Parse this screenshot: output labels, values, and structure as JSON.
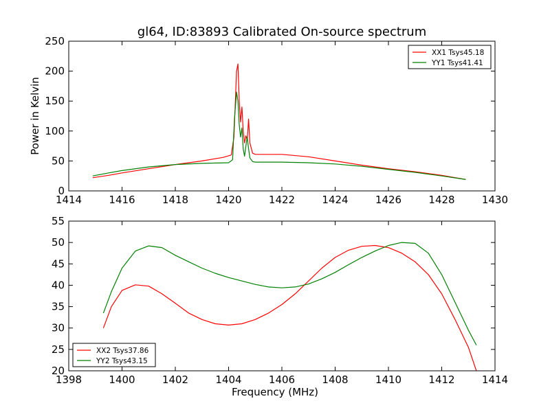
{
  "figure": {
    "title": "gl64, ID:83893 Calibrated On-source spectrum"
  },
  "colors": {
    "XX": "#ff0000",
    "YY": "#008000"
  },
  "chart_data": [
    {
      "type": "line",
      "title": "gl64, ID:83893 Calibrated On-source spectrum",
      "xlabel": "",
      "ylabel": "Power in Kelvin",
      "xlim": [
        1414,
        1430
      ],
      "ylim": [
        0,
        250
      ],
      "xticks": [
        1414,
        1416,
        1418,
        1420,
        1422,
        1424,
        1426,
        1428,
        1430
      ],
      "yticks": [
        0,
        50,
        100,
        150,
        200,
        250
      ],
      "legend_position": "top-right",
      "series": [
        {
          "name": "XX1 Tsys45.18",
          "color": "#ff0000",
          "points": [
            [
              1414.9,
              22
            ],
            [
              1415.5,
              26
            ],
            [
              1416.0,
              30
            ],
            [
              1417.0,
              37
            ],
            [
              1418.0,
              44
            ],
            [
              1419.0,
              50
            ],
            [
              1419.8,
              56
            ],
            [
              1420.1,
              60
            ],
            [
              1420.2,
              90
            ],
            [
              1420.3,
              200
            ],
            [
              1420.35,
              212
            ],
            [
              1420.4,
              150
            ],
            [
              1420.45,
              115
            ],
            [
              1420.5,
              140
            ],
            [
              1420.55,
              100
            ],
            [
              1420.6,
              80
            ],
            [
              1420.65,
              92
            ],
            [
              1420.7,
              85
            ],
            [
              1420.75,
              120
            ],
            [
              1420.8,
              80
            ],
            [
              1420.9,
              63
            ],
            [
              1421.0,
              61
            ],
            [
              1422.0,
              61
            ],
            [
              1423.0,
              57
            ],
            [
              1424.0,
              50
            ],
            [
              1425.0,
              43
            ],
            [
              1426.0,
              37
            ],
            [
              1427.0,
              32
            ],
            [
              1428.0,
              26
            ],
            [
              1428.9,
              19
            ]
          ]
        },
        {
          "name": "YY1 Tsys41.41",
          "color": "#008000",
          "points": [
            [
              1414.9,
              25
            ],
            [
              1415.5,
              30
            ],
            [
              1416.0,
              34
            ],
            [
              1417.0,
              40
            ],
            [
              1418.0,
              44
            ],
            [
              1419.0,
              46
            ],
            [
              1420.0,
              47
            ],
            [
              1420.15,
              52
            ],
            [
              1420.22,
              120
            ],
            [
              1420.3,
              165
            ],
            [
              1420.35,
              150
            ],
            [
              1420.4,
              110
            ],
            [
              1420.45,
              90
            ],
            [
              1420.5,
              105
            ],
            [
              1420.55,
              70
            ],
            [
              1420.6,
              58
            ],
            [
              1420.65,
              75
            ],
            [
              1420.7,
              90
            ],
            [
              1420.75,
              70
            ],
            [
              1420.8,
              55
            ],
            [
              1420.9,
              49
            ],
            [
              1421.0,
              48
            ],
            [
              1422.0,
              48
            ],
            [
              1423.0,
              47
            ],
            [
              1424.0,
              45
            ],
            [
              1425.0,
              41
            ],
            [
              1426.0,
              36
            ],
            [
              1427.0,
              31
            ],
            [
              1428.0,
              25
            ],
            [
              1428.9,
              19
            ]
          ]
        }
      ]
    },
    {
      "type": "line",
      "title": "",
      "xlabel": "Frequency (MHz)",
      "ylabel": "",
      "xlim": [
        1398,
        1414
      ],
      "ylim": [
        20,
        55
      ],
      "xticks": [
        1398,
        1400,
        1402,
        1404,
        1406,
        1408,
        1410,
        1412,
        1414
      ],
      "yticks": [
        20,
        25,
        30,
        35,
        40,
        45,
        50,
        55
      ],
      "legend_position": "bottom-left",
      "series": [
        {
          "name": "XX2 Tsys37.86",
          "color": "#ff0000",
          "points": [
            [
              1399.3,
              30
            ],
            [
              1399.6,
              35
            ],
            [
              1400.0,
              38.8
            ],
            [
              1400.5,
              40.1
            ],
            [
              1401.0,
              39.8
            ],
            [
              1401.5,
              38
            ],
            [
              1402.0,
              35.8
            ],
            [
              1402.5,
              33.5
            ],
            [
              1403.0,
              32
            ],
            [
              1403.5,
              31
            ],
            [
              1404.0,
              30.7
            ],
            [
              1404.5,
              31
            ],
            [
              1405.0,
              32
            ],
            [
              1405.5,
              33.5
            ],
            [
              1406.0,
              35.5
            ],
            [
              1406.5,
              38
            ],
            [
              1407.0,
              41
            ],
            [
              1407.5,
              44
            ],
            [
              1408.0,
              46.5
            ],
            [
              1408.5,
              48.2
            ],
            [
              1409.0,
              49.1
            ],
            [
              1409.5,
              49.3
            ],
            [
              1410.0,
              48.8
            ],
            [
              1410.5,
              47.5
            ],
            [
              1411.0,
              45.5
            ],
            [
              1411.5,
              42.5
            ],
            [
              1412.0,
              38
            ],
            [
              1412.5,
              32
            ],
            [
              1413.0,
              25.5
            ],
            [
              1413.3,
              20
            ]
          ]
        },
        {
          "name": "YY2 Tsys43.15",
          "color": "#008000",
          "points": [
            [
              1399.3,
              33.5
            ],
            [
              1399.6,
              38.5
            ],
            [
              1400.0,
              44
            ],
            [
              1400.5,
              48
            ],
            [
              1401.0,
              49.2
            ],
            [
              1401.5,
              48.8
            ],
            [
              1402.0,
              47
            ],
            [
              1402.5,
              45.5
            ],
            [
              1403.0,
              44
            ],
            [
              1403.5,
              42.8
            ],
            [
              1404.0,
              41.8
            ],
            [
              1404.5,
              41
            ],
            [
              1405.0,
              40.2
            ],
            [
              1405.5,
              39.6
            ],
            [
              1406.0,
              39.4
            ],
            [
              1406.5,
              39.6
            ],
            [
              1407.0,
              40.3
            ],
            [
              1407.5,
              41.5
            ],
            [
              1408.0,
              43
            ],
            [
              1408.5,
              44.8
            ],
            [
              1409.0,
              46.5
            ],
            [
              1409.5,
              48
            ],
            [
              1410.0,
              49.3
            ],
            [
              1410.5,
              50
            ],
            [
              1411.0,
              49.8
            ],
            [
              1411.5,
              47.5
            ],
            [
              1412.0,
              42.5
            ],
            [
              1412.5,
              36
            ],
            [
              1413.0,
              29.5
            ],
            [
              1413.3,
              26
            ]
          ]
        }
      ]
    }
  ]
}
